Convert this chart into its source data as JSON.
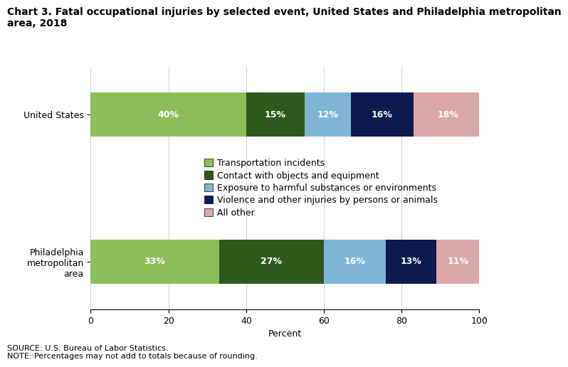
{
  "title": "Chart 3. Fatal occupational injuries by selected event, United States and Philadelphia metropolitan\narea, 2018",
  "categories": [
    "United States",
    "Philadelphia\nmetropolitan\narea"
  ],
  "series": [
    {
      "label": "Transportation incidents",
      "color": "#8fbc5a",
      "values": [
        40,
        33
      ]
    },
    {
      "label": "Contact with objects and equipment",
      "color": "#2d5a1b",
      "values": [
        15,
        27
      ]
    },
    {
      "label": "Exposure to harmful substances or environments",
      "color": "#7eb5d6",
      "values": [
        12,
        16
      ]
    },
    {
      "label": "Violence and other injuries by persons or animals",
      "color": "#0c1a4e",
      "values": [
        16,
        13
      ]
    },
    {
      "label": "All other",
      "color": "#d9a7a7",
      "values": [
        18,
        11
      ]
    }
  ],
  "xlabel": "Percent",
  "xlim": [
    0,
    100
  ],
  "xticks": [
    0,
    20,
    40,
    60,
    80,
    100
  ],
  "source_text": "SOURCE: U.S. Bureau of Labor Statistics.\nNOTE: Percentages may not add to totals because of rounding.",
  "bar_height": 0.6,
  "text_color_white": "#ffffff",
  "title_fontsize": 10,
  "label_fontsize": 9,
  "tick_fontsize": 9,
  "legend_fontsize": 9
}
